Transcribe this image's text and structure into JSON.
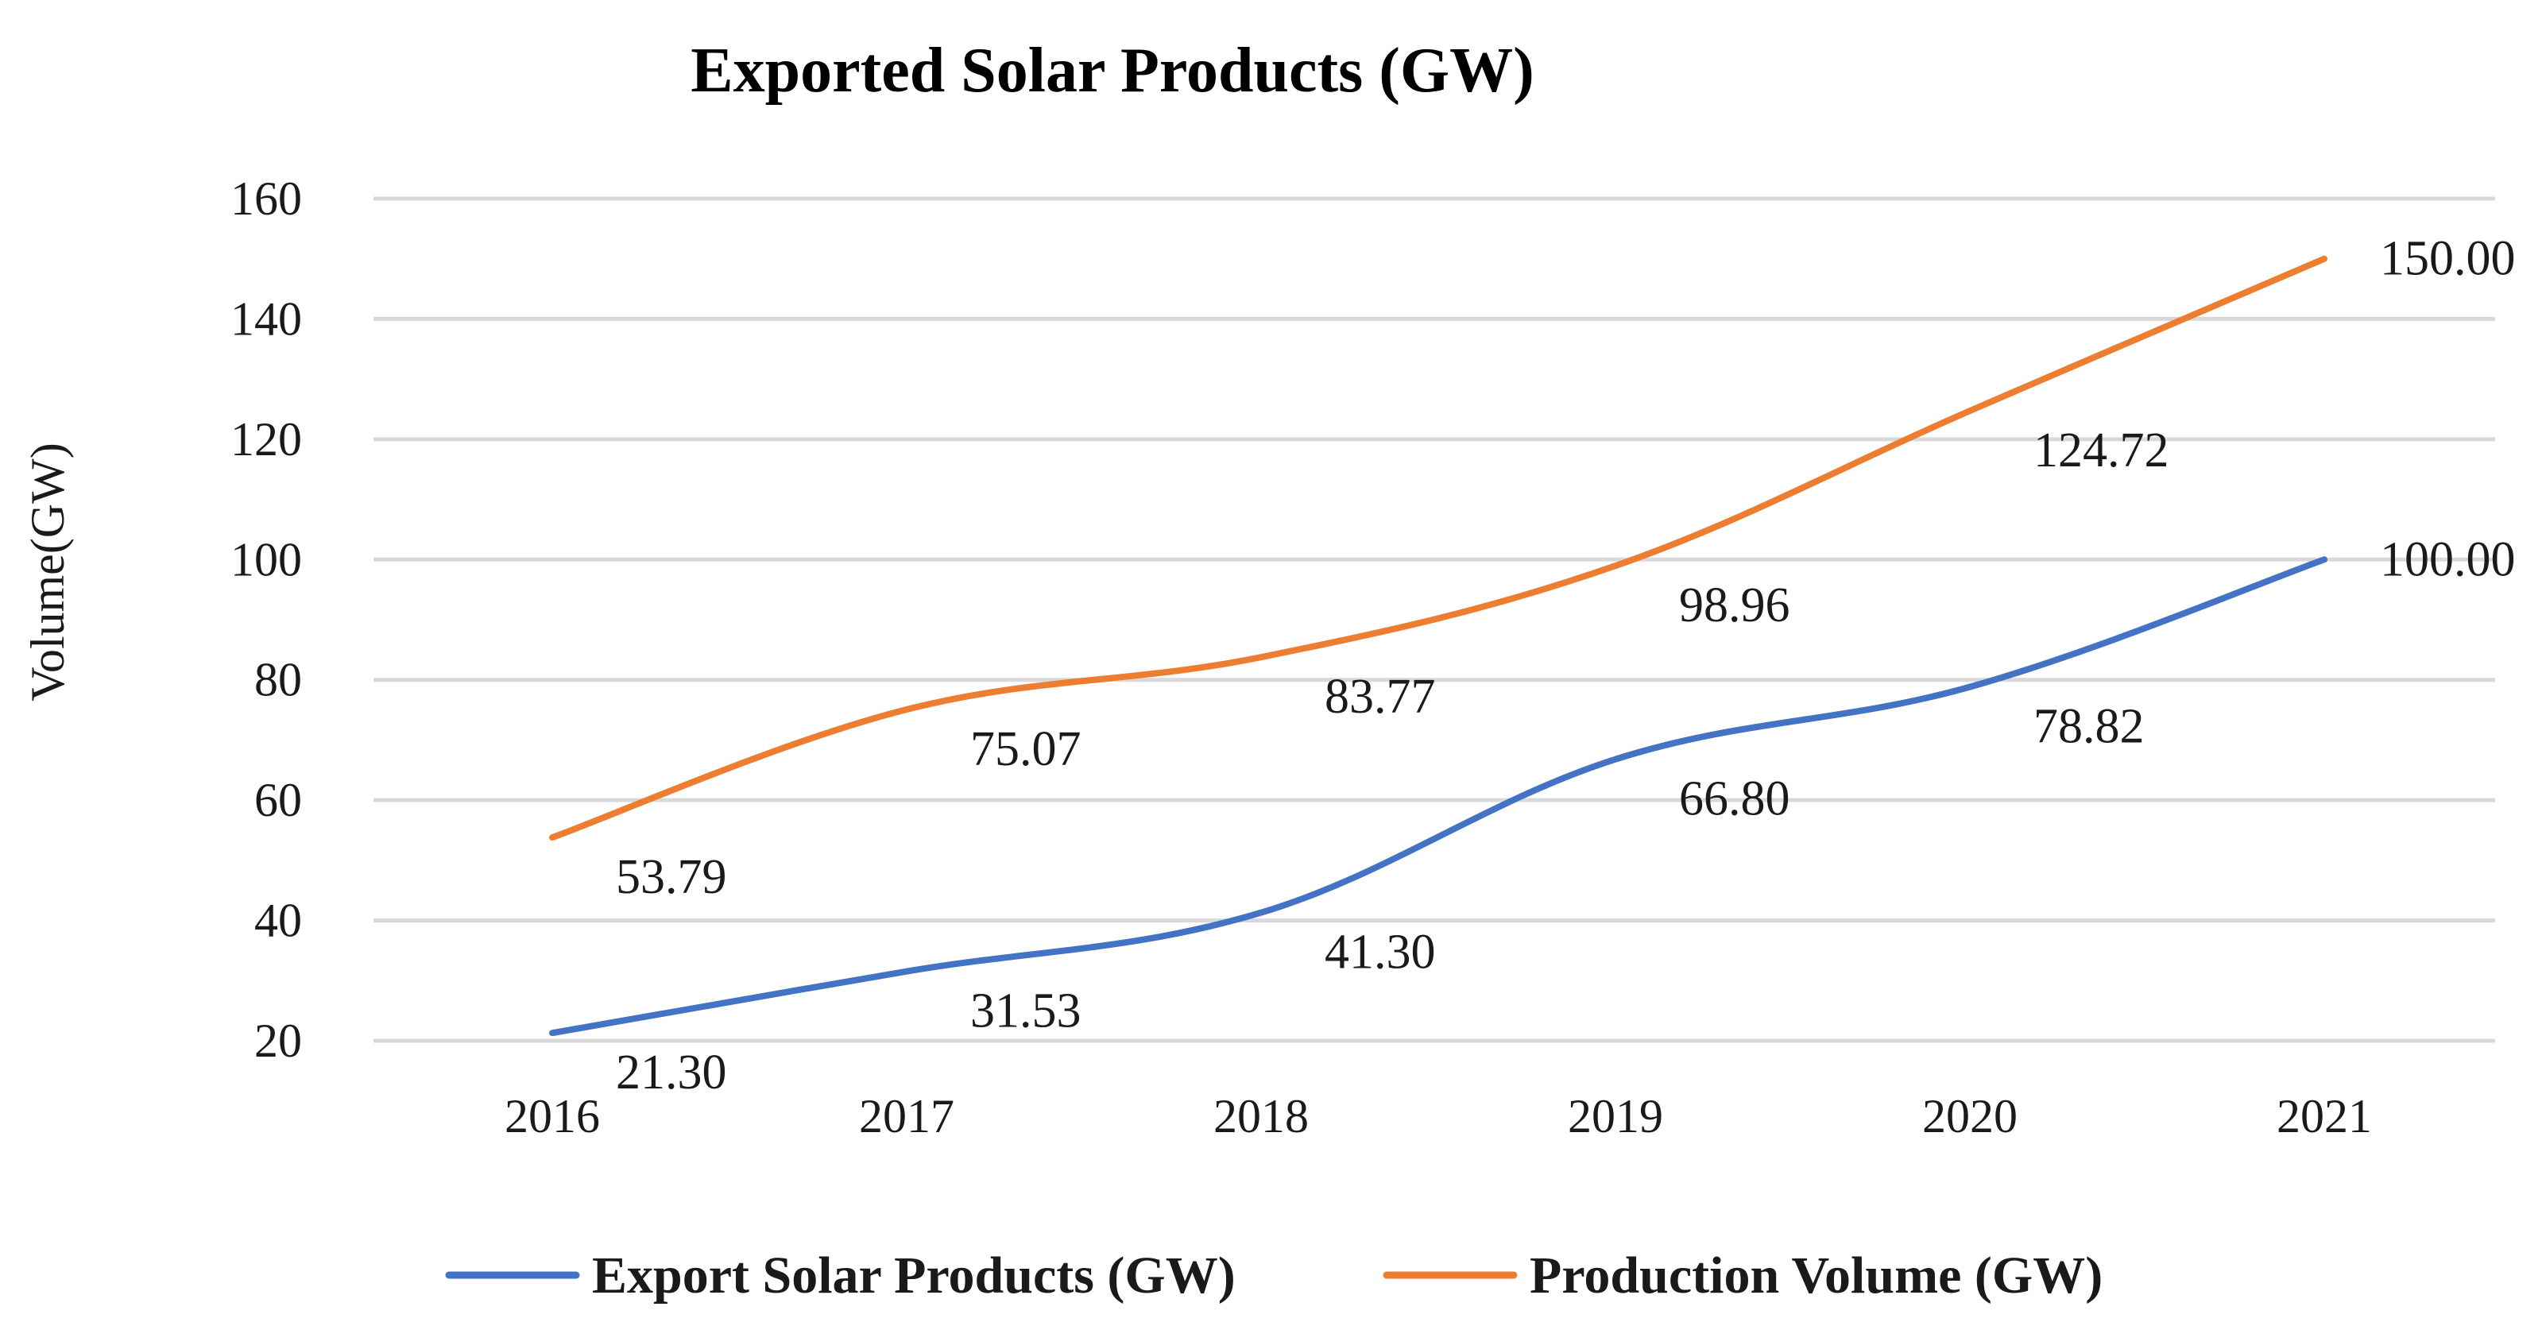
{
  "chart_data": {
    "type": "line",
    "title": "Exported Solar Products (GW)",
    "xlabel": "",
    "ylabel": "Volume(GW)",
    "categories": [
      "2016",
      "2017",
      "2018",
      "2019",
      "2020",
      "2021"
    ],
    "ylim": [
      20,
      160
    ],
    "yticks": [
      20,
      40,
      60,
      80,
      100,
      120,
      140,
      160
    ],
    "grid": true,
    "smooth": true,
    "legend_position": "bottom",
    "series": [
      {
        "name": "Export Solar Products (GW)",
        "color": "#4472c4",
        "values": [
          21.3,
          31.53,
          41.3,
          66.8,
          78.82,
          100.0
        ],
        "labels": [
          "21.30",
          "31.53",
          "41.30",
          "66.80",
          "78.82",
          "100.00"
        ]
      },
      {
        "name": "Production Volume (GW)",
        "color": "#ed7d31",
        "values": [
          53.79,
          75.07,
          83.77,
          98.96,
          124.72,
          150.0
        ],
        "labels": [
          "53.79",
          "75.07",
          "83.77",
          "98.96",
          "124.72",
          "150.00"
        ]
      }
    ]
  }
}
